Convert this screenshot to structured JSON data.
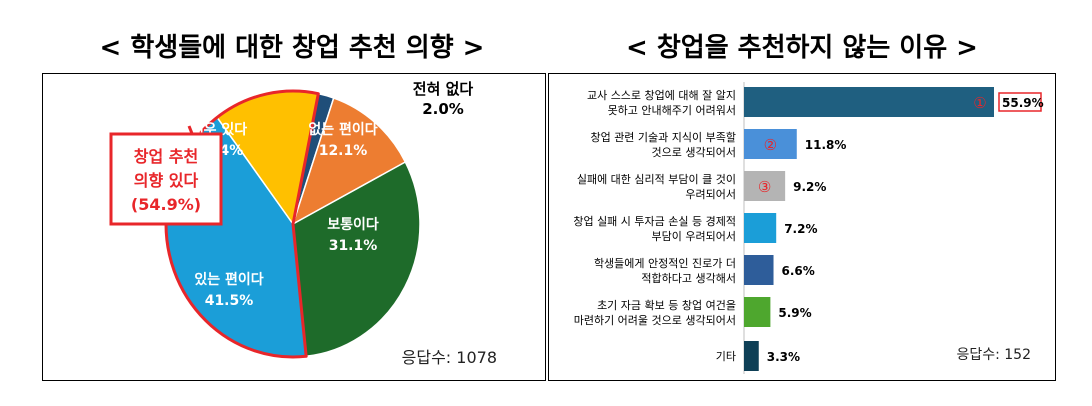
{
  "titles": {
    "left": "< 학생들에 대한 창업 추천 의향 >",
    "right": "< 창업을 추천하지 않는 이유 >"
  },
  "pie": {
    "respondents": "응답수: 1078",
    "callout_lines": [
      "창업 추천",
      "의향 있다",
      "(54.9%)"
    ],
    "colors": {
      "전혀 없다": "#1f4e79",
      "없는 편이다": "#ed7d31",
      "보통이다": "#1e6b2a",
      "있는 편이다": "#1b9ed8",
      "매우 있다": "#ffc000",
      "highlight": "#e8262a"
    }
  },
  "bars": {
    "respondents": "응답수: 152",
    "rank_marks": [
      "①",
      "②",
      "③"
    ],
    "colors": [
      "#1f5f80",
      "#4a90d9",
      "#b4b4b4",
      "#1b9ed8",
      "#2e5d9a",
      "#4ea72e",
      "#0e3f56"
    ],
    "highlight": "#e8262a"
  },
  "chart_data": [
    {
      "type": "pie",
      "title": "< 학생들에 대한 창업 추천 의향 >",
      "slices": [
        {
          "label": "전혀 없다",
          "value": 2.0,
          "display": "2.0%"
        },
        {
          "label": "없는 편이다",
          "value": 12.1,
          "display": "12.1%"
        },
        {
          "label": "보통이다",
          "value": 31.1,
          "display": "31.1%"
        },
        {
          "label": "있는 편이다",
          "value": 41.5,
          "display": "41.5%"
        },
        {
          "label": "매우 있다",
          "value": 13.4,
          "display": "13.4%"
        }
      ],
      "annotation": "창업 추천 의향 있다 (54.9%)",
      "n": "응답수: 1078"
    },
    {
      "type": "bar",
      "orientation": "horizontal",
      "title": "< 창업을 추천하지 않는 이유 >",
      "categories": [
        [
          "교사 스스로 창업에 대해 잘 알지",
          "못하고 안내해주기 어려워서"
        ],
        [
          "창업 관련 기술과 지식이 부족할",
          "것으로 생각되어서"
        ],
        [
          "실패에 대한 심리적 부담이 클 것이",
          "우려되어서"
        ],
        [
          "창업 실패 시 투자금 손실 등 경제적",
          "부담이 우려되어서"
        ],
        [
          "학생들에게 안정적인 진로가 더",
          "적합하다고 생각해서"
        ],
        [
          "초기 자금 확보 등 창업 여건을",
          "마련하기 어려울 것으로 생각되어서"
        ],
        [
          "기타"
        ]
      ],
      "values": [
        55.9,
        11.8,
        9.2,
        7.2,
        6.6,
        5.9,
        3.3
      ],
      "value_labels": [
        "55.9%",
        "11.8%",
        "9.2%",
        "7.2%",
        "6.6%",
        "5.9%",
        "3.3%"
      ],
      "xlim": [
        0,
        55.9
      ],
      "n": "응답수: 152"
    }
  ]
}
